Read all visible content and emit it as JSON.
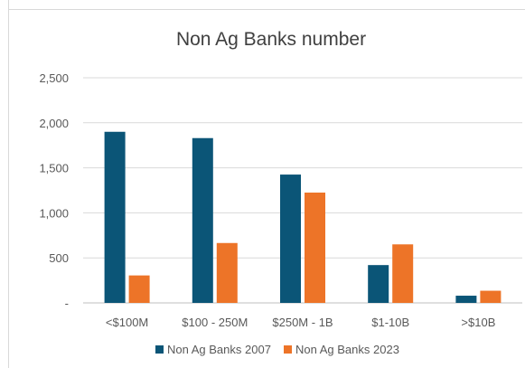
{
  "chart_data": {
    "type": "bar",
    "title": "Non Ag Banks number",
    "categories": [
      "<$100M",
      "$100 - 250M",
      "$250M - 1B",
      "$1-10B",
      ">$10B"
    ],
    "series": [
      {
        "name": "Non Ag Banks 2007",
        "color": "#0b5577",
        "values": [
          1900,
          1830,
          1425,
          420,
          80
        ]
      },
      {
        "name": "Non Ag Banks 2023",
        "color": "#ed7428",
        "values": [
          305,
          665,
          1225,
          650,
          135
        ]
      }
    ],
    "ylim": [
      0,
      2500
    ],
    "yticks": [
      {
        "value": 0,
        "label": "-"
      },
      {
        "value": 500,
        "label": "500"
      },
      {
        "value": 1000,
        "label": "1,000"
      },
      {
        "value": 1500,
        "label": "1,500"
      },
      {
        "value": 2000,
        "label": "2,000"
      },
      {
        "value": 2500,
        "label": "2,500"
      }
    ],
    "grid": true,
    "legend_position": "bottom"
  }
}
